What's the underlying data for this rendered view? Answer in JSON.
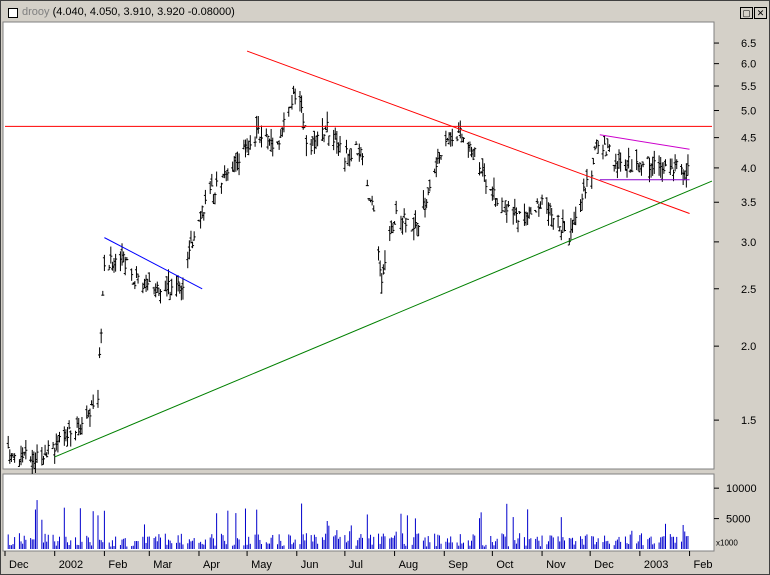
{
  "window": {
    "symbol": "drooy",
    "quote": "(4.040, 4.050, 3.910, 3.920 -0.08000)",
    "max_glyph": "▢",
    "close_glyph": "✕"
  },
  "colors": {
    "price_bars": "#000000",
    "volume_bars": "#0000cc",
    "resistance": "#ff0000",
    "support": "#008000",
    "short_trend": "#0000ff",
    "pennant": "#cc00cc",
    "pennant_base": "#8800cc"
  },
  "chart_data": [
    {
      "type": "ohlc",
      "scale": "log",
      "ylim": [
        1.25,
        7.0
      ],
      "price_ticks": [
        1.5,
        2.0,
        2.5,
        3.0,
        3.5,
        4.0,
        4.5,
        5.0,
        5.5,
        6.0,
        6.5
      ],
      "price_tick_labels": [
        "1.5",
        "2.0",
        "2.5",
        "3.0",
        "3.5",
        "4.0",
        "4.5",
        "5.0",
        "5.5",
        "6.0",
        "6.5"
      ],
      "xlim": [
        "2001-12-01",
        "2003-02-15"
      ],
      "x_ticks": [
        {
          "date": "2001-12-01",
          "label": "Dec"
        },
        {
          "date": "2002-01-01",
          "label": "2002"
        },
        {
          "date": "2002-02-01",
          "label": "Feb"
        },
        {
          "date": "2002-03-01",
          "label": "Mar"
        },
        {
          "date": "2002-04-01",
          "label": "Apr"
        },
        {
          "date": "2002-05-01",
          "label": "May"
        },
        {
          "date": "2002-06-01",
          "label": "Jun"
        },
        {
          "date": "2002-07-01",
          "label": "Jul"
        },
        {
          "date": "2002-08-01",
          "label": "Aug"
        },
        {
          "date": "2002-09-01",
          "label": "Sep"
        },
        {
          "date": "2002-10-01",
          "label": "Oct"
        },
        {
          "date": "2002-11-01",
          "label": "Nov"
        },
        {
          "date": "2002-12-01",
          "label": "Dec"
        },
        {
          "date": "2003-01-01",
          "label": "2003"
        },
        {
          "date": "2003-02-01",
          "label": "Feb"
        }
      ],
      "close_path": [
        [
          "2001-12-01",
          1.32
        ],
        [
          "2001-12-18",
          1.3
        ],
        [
          "2002-01-01",
          1.36
        ],
        [
          "2002-01-15",
          1.45
        ],
        [
          "2002-01-28",
          1.62
        ],
        [
          "2002-02-01",
          2.7
        ],
        [
          "2002-02-10",
          2.85
        ],
        [
          "2002-02-20",
          2.6
        ],
        [
          "2002-03-01",
          2.55
        ],
        [
          "2002-03-12",
          2.5
        ],
        [
          "2002-03-22",
          2.55
        ],
        [
          "2002-04-01",
          3.35
        ],
        [
          "2002-04-15",
          3.85
        ],
        [
          "2002-04-30",
          4.3
        ],
        [
          "2002-05-08",
          4.6
        ],
        [
          "2002-05-20",
          4.4
        ],
        [
          "2002-05-28",
          5.1
        ],
        [
          "2002-06-01",
          5.4
        ],
        [
          "2002-06-08",
          4.3
        ],
        [
          "2002-06-20",
          4.7
        ],
        [
          "2002-07-01",
          4.2
        ],
        [
          "2002-07-10",
          4.3
        ],
        [
          "2002-07-20",
          3.2
        ],
        [
          "2002-07-24",
          2.55
        ],
        [
          "2002-08-01",
          3.3
        ],
        [
          "2002-08-15",
          3.2
        ],
        [
          "2002-08-22",
          3.6
        ],
        [
          "2002-09-01",
          4.5
        ],
        [
          "2002-09-10",
          4.6
        ],
        [
          "2002-09-20",
          4.2
        ],
        [
          "2002-10-01",
          3.6
        ],
        [
          "2002-10-12",
          3.35
        ],
        [
          "2002-10-22",
          3.3
        ],
        [
          "2002-11-01",
          3.45
        ],
        [
          "2002-11-10",
          3.3
        ],
        [
          "2002-11-18",
          3.05
        ],
        [
          "2002-11-25",
          3.6
        ],
        [
          "2002-12-01",
          3.8
        ],
        [
          "2002-12-05",
          4.45
        ],
        [
          "2002-12-20",
          4.05
        ],
        [
          "2003-01-05",
          4.1
        ],
        [
          "2003-01-20",
          4.05
        ],
        [
          "2003-01-31",
          3.92
        ]
      ],
      "trendlines": [
        {
          "role": "resistance",
          "points": [
            [
              "2002-05-01",
              6.3
            ],
            [
              "2003-02-01",
              3.35
            ]
          ]
        },
        {
          "role": "horizontal",
          "points": [
            [
              "2001-12-01",
              4.7
            ],
            [
              "2003-02-15",
              4.7
            ]
          ]
        },
        {
          "role": "support",
          "points": [
            [
              "2002-01-01",
              1.3
            ],
            [
              "2003-02-15",
              3.8
            ]
          ]
        },
        {
          "role": "short_trend",
          "points": [
            [
              "2002-02-01",
              3.05
            ],
            [
              "2002-04-03",
              2.5
            ]
          ]
        },
        {
          "role": "pennant",
          "points": [
            [
              "2002-12-07",
              4.55
            ],
            [
              "2003-02-01",
              4.3
            ]
          ]
        },
        {
          "role": "pennant_base",
          "points": [
            [
              "2002-12-07",
              3.82
            ],
            [
              "2003-02-01",
              3.82
            ]
          ]
        }
      ]
    },
    {
      "type": "bar",
      "series": [
        {
          "values": "daily volume"
        }
      ],
      "ylim": [
        0,
        12000
      ],
      "volume_ticks": [
        5000,
        10000
      ],
      "volume_tick_labels": [
        "5000",
        "10000"
      ],
      "multiplier_label": "x1000"
    }
  ]
}
